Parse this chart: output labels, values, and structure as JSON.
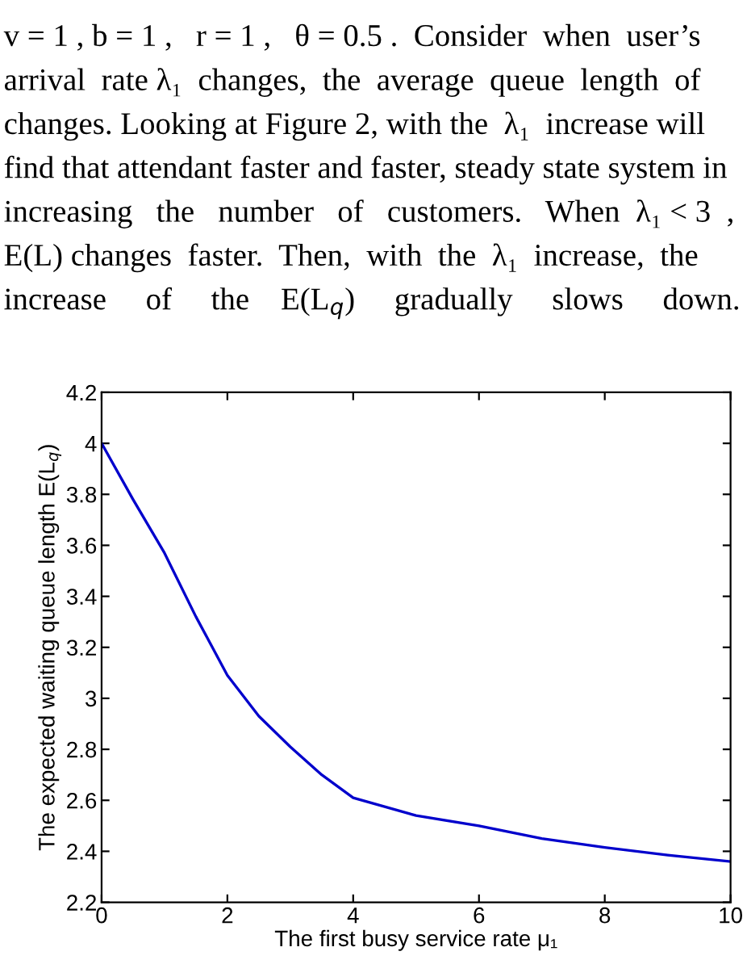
{
  "chart_data": {
    "type": "line",
    "xlabel": "The first busy service rate μ₁",
    "ylabel": "The expected waiting queue length E(L$_{q}$)",
    "x": [
      0,
      0.5,
      1,
      1.5,
      2,
      2.5,
      3,
      3.5,
      4,
      5,
      6,
      7,
      8,
      9,
      10
    ],
    "series": [
      {
        "color": "#0000cc",
        "values": [
          4.0,
          3.78,
          3.57,
          3.32,
          3.09,
          2.93,
          2.81,
          2.7,
          2.61,
          2.54,
          2.5,
          2.45,
          2.415,
          2.385,
          2.36
        ]
      }
    ],
    "xlim": [
      0,
      10
    ],
    "ylim": [
      2.2,
      4.2
    ],
    "xticks": [
      0,
      2,
      4,
      6,
      8,
      10
    ],
    "yticks": [
      2.2,
      2.4,
      2.6,
      2.8,
      3,
      3.2,
      3.4,
      3.6,
      3.8,
      4,
      4.2
    ],
    "grid": false,
    "legend": false,
    "marker": "none",
    "line_style": "solid",
    "annotations": [
      "v = 1 , b = 1 ,   r = 1 ,   θ = 0.5 .  Consider  when  user’s",
      "arrival  rate λ₁  changes,  the  average  queue  length  of",
      "changes. Looking at Figure 2, with the  λ₁  increase will",
      "find that attendant faster and faster, steady state system in",
      "increasing   the   number   of   customers.   When  λ₁ < 3  ,",
      "E(L) changes  faster.  Then,  with  the  λ₁  increase,  the",
      "increase     of     the    E(L$_{q}$)     gradually     slows     down."
    ]
  }
}
